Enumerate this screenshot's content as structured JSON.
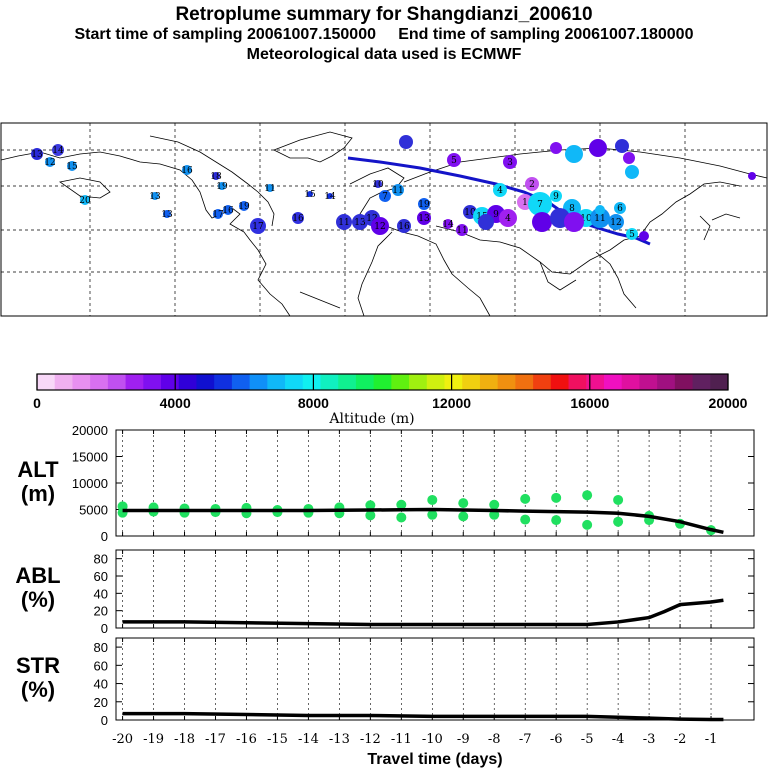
{
  "header": {
    "title": "Retroplume summary for Shangdianzi_200610",
    "sampling": "Start time of sampling 20061007.150000     End time of sampling 20061007.180000",
    "met": "Meteorological data used is ECMWF"
  },
  "colorbar": {
    "ticks": [
      "0",
      "4000",
      "8000",
      "12000",
      "16000",
      "20000"
    ],
    "label": "Altitude (m)",
    "colors": [
      "#f8d8f8",
      "#f0b0f0",
      "#e890f0",
      "#d870f0",
      "#c050f0",
      "#a020f0",
      "#8010f0",
      "#6000e8",
      "#3000d8",
      "#1010d0",
      "#1030e0",
      "#1060f0",
      "#1090f8",
      "#10b8f8",
      "#10d8f8",
      "#10f0f0",
      "#10f0c0",
      "#10f090",
      "#10f060",
      "#20f030",
      "#60f010",
      "#a0f010",
      "#d0f010",
      "#f0f010",
      "#f0d010",
      "#f0b010",
      "#f09010",
      "#f07010",
      "#f04010",
      "#f01010",
      "#f01060",
      "#f01090",
      "#f010c0",
      "#e010a0",
      "#c01090",
      "#a01080",
      "#801060",
      "#602060",
      "#502050"
    ]
  },
  "map": {
    "markers": [
      {
        "label": "13",
        "color": "#2a2ad8"
      },
      {
        "label": "14",
        "color": "#3a3ae0"
      },
      {
        "label": "12",
        "color": "#1090f0"
      },
      {
        "label": "15",
        "color": "#1090f0"
      },
      {
        "label": "20",
        "color": "#10b8f8"
      },
      {
        "label": "16",
        "color": "#1090f0"
      },
      {
        "label": "18",
        "color": "#2a2ad8"
      },
      {
        "label": "19",
        "color": "#1090f0"
      },
      {
        "label": "11",
        "color": "#1090f0"
      },
      {
        "label": "13",
        "color": "#1090f0"
      },
      {
        "label": "13",
        "color": "#1060f0"
      },
      {
        "label": "17",
        "color": "#1060f0"
      },
      {
        "label": "16",
        "color": "#1060f0"
      },
      {
        "label": "19",
        "color": "#1060f0"
      },
      {
        "label": "17",
        "color": "#3030e0"
      },
      {
        "label": "16",
        "color": "#3030e0"
      },
      {
        "label": "15",
        "color": "#1030e0"
      },
      {
        "label": "14",
        "color": "#1030e0"
      },
      {
        "label": "11",
        "color": "#3030d8"
      },
      {
        "label": "13",
        "color": "#3030d8"
      },
      {
        "label": "12",
        "color": "#3030d8"
      },
      {
        "label": "7",
        "color": "#1060f0"
      },
      {
        "label": "10",
        "color": "#3030d8"
      },
      {
        "label": "11",
        "color": "#1090f0"
      },
      {
        "label": "19",
        "color": "#1060f0"
      },
      {
        "label": "16",
        "color": "#3030d8"
      },
      {
        "label": "12",
        "color": "#6000e8"
      },
      {
        "label": "13",
        "color": "#6000e8"
      },
      {
        "label": "14",
        "color": "#8010f0"
      },
      {
        "label": "11",
        "color": "#8010f0"
      },
      {
        "label": "10",
        "color": "#3030d8"
      },
      {
        "label": "15",
        "color": "#10d8f8"
      },
      {
        "label": "9",
        "color": "#6000e8"
      },
      {
        "label": "4",
        "color": "#a020f0"
      },
      {
        "label": "4",
        "color": "#10d8f8"
      },
      {
        "label": "5",
        "color": "#8010f0"
      },
      {
        "label": "3",
        "color": "#8010f0"
      },
      {
        "label": "2",
        "color": "#c050f0"
      },
      {
        "label": "1",
        "color": "#d870f0"
      },
      {
        "label": "7",
        "color": "#10d8f8"
      },
      {
        "label": "9",
        "color": "#10d8f8"
      },
      {
        "label": "8",
        "color": "#10b8f8"
      },
      {
        "label": "10",
        "color": "#10d8f8"
      },
      {
        "label": "11",
        "color": "#1090f0"
      },
      {
        "label": "12",
        "color": "#1090f0"
      },
      {
        "label": "6",
        "color": "#10b8f8"
      },
      {
        "label": "5",
        "color": "#10d8f8"
      }
    ]
  },
  "chart_data": [
    {
      "type": "scatter",
      "panel": "ALT",
      "ylabel": "ALT (m)",
      "ylabel_lines": [
        "ALT",
        "(m)"
      ],
      "yticks": [
        "20000",
        "15000",
        "10000",
        "5000",
        "0"
      ],
      "ylim": [
        0,
        20000
      ],
      "xlim": [
        -20,
        0
      ],
      "line": {
        "x": [
          -20,
          -19,
          -18,
          -17,
          -16,
          -15,
          -14,
          -13,
          -12,
          -11,
          -10,
          -9,
          -8,
          -7,
          -6,
          -5,
          -4,
          -3,
          -2,
          -1,
          -0.6
        ],
        "y": [
          4800,
          4800,
          4800,
          4800,
          4800,
          4800,
          4800,
          4850,
          4900,
          4950,
          5000,
          4900,
          4800,
          4700,
          4600,
          4500,
          4300,
          3700,
          2700,
          1200,
          700
        ]
      },
      "points": [
        {
          "x": -20,
          "y": 5600
        },
        {
          "x": -20,
          "y": 4400
        },
        {
          "x": -19,
          "y": 5400
        },
        {
          "x": -19,
          "y": 4600
        },
        {
          "x": -18,
          "y": 5200
        },
        {
          "x": -18,
          "y": 4400
        },
        {
          "x": -17,
          "y": 5100
        },
        {
          "x": -17,
          "y": 4500
        },
        {
          "x": -16,
          "y": 5300
        },
        {
          "x": -16,
          "y": 4300
        },
        {
          "x": -15,
          "y": 4900
        },
        {
          "x": -15,
          "y": 4500
        },
        {
          "x": -14,
          "y": 5100
        },
        {
          "x": -14,
          "y": 4400
        },
        {
          "x": -13,
          "y": 5400
        },
        {
          "x": -13,
          "y": 4300
        },
        {
          "x": -12,
          "y": 5800
        },
        {
          "x": -12,
          "y": 3900
        },
        {
          "x": -11,
          "y": 5900
        },
        {
          "x": -11,
          "y": 3500
        },
        {
          "x": -10,
          "y": 6800
        },
        {
          "x": -10,
          "y": 4000
        },
        {
          "x": -9,
          "y": 6200
        },
        {
          "x": -9,
          "y": 3700
        },
        {
          "x": -8,
          "y": 5900
        },
        {
          "x": -8,
          "y": 4000
        },
        {
          "x": -7,
          "y": 7000
        },
        {
          "x": -7,
          "y": 3100
        },
        {
          "x": -6,
          "y": 7200
        },
        {
          "x": -6,
          "y": 3000
        },
        {
          "x": -5,
          "y": 7700
        },
        {
          "x": -5,
          "y": 2100
        },
        {
          "x": -4,
          "y": 6800
        },
        {
          "x": -4,
          "y": 2700
        },
        {
          "x": -3,
          "y": 3800
        },
        {
          "x": -3,
          "y": 3000
        },
        {
          "x": -2,
          "y": 2300
        },
        {
          "x": -1,
          "y": 1100
        }
      ]
    },
    {
      "type": "line",
      "panel": "ABL",
      "ylabel": "ABL (%)",
      "ylabel_lines": [
        "ABL",
        "(%)"
      ],
      "yticks": [
        "80",
        "60",
        "40",
        "20",
        "0"
      ],
      "ylim": [
        0,
        90
      ],
      "xlim": [
        -20,
        0
      ],
      "x": [
        -20,
        -18,
        -16,
        -14,
        -12,
        -10,
        -8,
        -6,
        -5,
        -4,
        -3,
        -2.5,
        -2,
        -1,
        -0.6
      ],
      "y": [
        7,
        7,
        6,
        5,
        4,
        4,
        4,
        4,
        4,
        7,
        12,
        19,
        27,
        30,
        32
      ]
    },
    {
      "type": "line",
      "panel": "STR",
      "ylabel": "STR (%)",
      "ylabel_lines": [
        "STR",
        "(%)"
      ],
      "yticks": [
        "80",
        "60",
        "40",
        "20",
        "0"
      ],
      "ylim": [
        0,
        90
      ],
      "xlim": [
        -20,
        0
      ],
      "x": [
        -20,
        -18,
        -16,
        -14,
        -12,
        -10,
        -8,
        -6,
        -5,
        -4,
        -3,
        -2,
        -1,
        -0.6
      ],
      "y": [
        7,
        7,
        6,
        5,
        5,
        4,
        4,
        4,
        4,
        3,
        2,
        1,
        0.5,
        0.5
      ]
    }
  ],
  "xaxis": {
    "ticks": [
      "-20",
      "-19",
      "-18",
      "-17",
      "-16",
      "-15",
      "-14",
      "-13",
      "-12",
      "-11",
      "-10",
      "-9",
      "-8",
      "-7",
      "-6",
      "-5",
      "-4",
      "-3",
      "-2",
      "-1"
    ],
    "label": "Travel time (days)"
  }
}
